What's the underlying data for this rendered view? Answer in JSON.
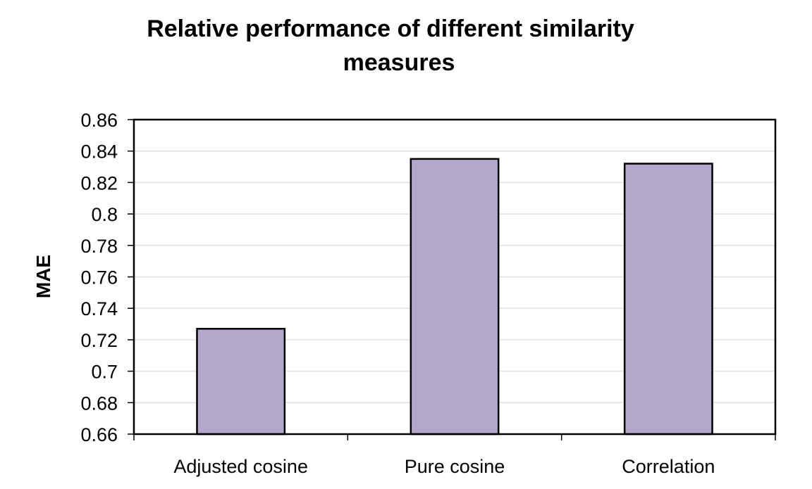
{
  "chart_data": {
    "type": "bar",
    "title_lines": [
      "Relative performance of different similarity",
      "measures"
    ],
    "title": "Relative performance of different similarity measures",
    "xlabel": "",
    "ylabel": "MAE",
    "categories": [
      "Adjusted cosine",
      "Pure cosine",
      "Correlation"
    ],
    "values": [
      0.727,
      0.835,
      0.832
    ],
    "ylim": [
      0.66,
      0.86
    ],
    "yticks": [
      "0.86",
      "0.84",
      "0.82",
      "0.8",
      "0.78",
      "0.76",
      "0.74",
      "0.72",
      "0.7",
      "0.68",
      "0.66"
    ],
    "grid": true,
    "legend": "none",
    "colors": {
      "bar_fill": "#b3a8cc",
      "bar_stroke": "#000000",
      "grid": "#e0e0e0",
      "axis": "#000000"
    }
  }
}
